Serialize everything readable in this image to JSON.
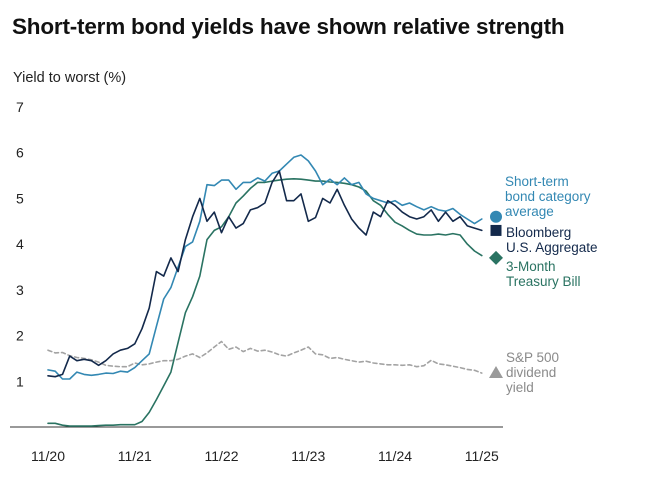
{
  "chart_data": {
    "type": "line",
    "title": "Short-term bond yields have shown relative strength",
    "ylabel": "Yield to worst (%)",
    "xlabel": "",
    "ylim": [
      0,
      7
    ],
    "yticks": [
      1,
      2,
      3,
      4,
      5,
      6,
      7
    ],
    "xlim": [
      0,
      61
    ],
    "xticks": [
      {
        "label": "11/20",
        "x": 0
      },
      {
        "label": "11/21",
        "x": 12
      },
      {
        "label": "11/22",
        "x": 24
      },
      {
        "label": "11/23",
        "x": 36
      },
      {
        "label": "11/24",
        "x": 48
      },
      {
        "label": "11/25",
        "x": 60
      }
    ],
    "grid": false,
    "series": [
      {
        "name": "S&P 500 dividend yield",
        "label_lines": [
          "S&P 500",
          "dividend",
          "yield"
        ],
        "color": "#a3a3a3",
        "style": "dashed",
        "marker": "triangle",
        "points": [
          [
            0,
            1.68
          ],
          [
            1,
            1.62
          ],
          [
            2,
            1.63
          ],
          [
            3,
            1.56
          ],
          [
            4,
            1.52
          ],
          [
            5,
            1.5
          ],
          [
            6,
            1.47
          ],
          [
            7,
            1.42
          ],
          [
            8,
            1.35
          ],
          [
            9,
            1.33
          ],
          [
            10,
            1.32
          ],
          [
            11,
            1.32
          ],
          [
            12,
            1.4
          ],
          [
            13,
            1.36
          ],
          [
            14,
            1.38
          ],
          [
            15,
            1.42
          ],
          [
            16,
            1.45
          ],
          [
            17,
            1.45
          ],
          [
            18,
            1.48
          ],
          [
            19,
            1.55
          ],
          [
            20,
            1.6
          ],
          [
            21,
            1.52
          ],
          [
            22,
            1.62
          ],
          [
            23,
            1.75
          ],
          [
            24,
            1.87
          ],
          [
            25,
            1.7
          ],
          [
            26,
            1.75
          ],
          [
            27,
            1.65
          ],
          [
            28,
            1.72
          ],
          [
            29,
            1.66
          ],
          [
            30,
            1.68
          ],
          [
            31,
            1.64
          ],
          [
            32,
            1.58
          ],
          [
            33,
            1.55
          ],
          [
            34,
            1.62
          ],
          [
            35,
            1.68
          ],
          [
            36,
            1.75
          ],
          [
            37,
            1.6
          ],
          [
            38,
            1.58
          ],
          [
            39,
            1.5
          ],
          [
            40,
            1.52
          ],
          [
            41,
            1.48
          ],
          [
            42,
            1.45
          ],
          [
            43,
            1.42
          ],
          [
            44,
            1.44
          ],
          [
            45,
            1.4
          ],
          [
            46,
            1.38
          ],
          [
            47,
            1.36
          ],
          [
            48,
            1.36
          ],
          [
            49,
            1.35
          ],
          [
            50,
            1.36
          ],
          [
            51,
            1.32
          ],
          [
            52,
            1.34
          ],
          [
            53,
            1.46
          ],
          [
            54,
            1.38
          ],
          [
            55,
            1.36
          ],
          [
            56,
            1.33
          ],
          [
            57,
            1.3
          ],
          [
            58,
            1.26
          ],
          [
            59,
            1.24
          ],
          [
            60,
            1.18
          ]
        ]
      },
      {
        "name": "3-Month Treasury Bill",
        "label_lines": [
          "3-Month",
          "Treasury Bill"
        ],
        "color": "#2a7362",
        "style": "solid",
        "marker": "diamond",
        "points": [
          [
            0,
            0.08
          ],
          [
            1,
            0.08
          ],
          [
            2,
            0.04
          ],
          [
            3,
            0.02
          ],
          [
            4,
            0.02
          ],
          [
            5,
            0.02
          ],
          [
            6,
            0.02
          ],
          [
            7,
            0.03
          ],
          [
            8,
            0.04
          ],
          [
            9,
            0.04
          ],
          [
            10,
            0.05
          ],
          [
            11,
            0.05
          ],
          [
            12,
            0.05
          ],
          [
            13,
            0.12
          ],
          [
            14,
            0.32
          ],
          [
            15,
            0.6
          ],
          [
            16,
            0.9
          ],
          [
            17,
            1.2
          ],
          [
            18,
            1.85
          ],
          [
            19,
            2.5
          ],
          [
            20,
            2.85
          ],
          [
            21,
            3.3
          ],
          [
            22,
            4.1
          ],
          [
            23,
            4.3
          ],
          [
            24,
            4.38
          ],
          [
            25,
            4.6
          ],
          [
            26,
            4.9
          ],
          [
            27,
            5.05
          ],
          [
            28,
            5.22
          ],
          [
            29,
            5.35
          ],
          [
            30,
            5.35
          ],
          [
            31,
            5.38
          ],
          [
            32,
            5.4
          ],
          [
            33,
            5.42
          ],
          [
            34,
            5.43
          ],
          [
            35,
            5.42
          ],
          [
            36,
            5.4
          ],
          [
            37,
            5.38
          ],
          [
            38,
            5.38
          ],
          [
            39,
            5.36
          ],
          [
            40,
            5.35
          ],
          [
            41,
            5.33
          ],
          [
            42,
            5.3
          ],
          [
            43,
            5.25
          ],
          [
            44,
            5.16
          ],
          [
            45,
            4.95
          ],
          [
            46,
            4.85
          ],
          [
            47,
            4.65
          ],
          [
            48,
            4.48
          ],
          [
            49,
            4.4
          ],
          [
            50,
            4.3
          ],
          [
            51,
            4.22
          ],
          [
            52,
            4.2
          ],
          [
            53,
            4.2
          ],
          [
            54,
            4.22
          ],
          [
            55,
            4.2
          ],
          [
            56,
            4.23
          ],
          [
            57,
            4.2
          ],
          [
            58,
            4.0
          ],
          [
            59,
            3.85
          ],
          [
            60,
            3.75
          ]
        ]
      },
      {
        "name": "Short-term bond category average",
        "label_lines": [
          "Short-term",
          "bond category",
          "average"
        ],
        "color": "#3388b3",
        "style": "solid",
        "marker": "circle",
        "points": [
          [
            0,
            1.25
          ],
          [
            1,
            1.22
          ],
          [
            2,
            1.05
          ],
          [
            3,
            1.05
          ],
          [
            4,
            1.2
          ],
          [
            5,
            1.15
          ],
          [
            6,
            1.13
          ],
          [
            7,
            1.15
          ],
          [
            8,
            1.18
          ],
          [
            9,
            1.17
          ],
          [
            10,
            1.22
          ],
          [
            11,
            1.2
          ],
          [
            12,
            1.3
          ],
          [
            13,
            1.45
          ],
          [
            14,
            1.6
          ],
          [
            15,
            2.2
          ],
          [
            16,
            2.8
          ],
          [
            17,
            3.05
          ],
          [
            18,
            3.5
          ],
          [
            19,
            3.95
          ],
          [
            20,
            4.05
          ],
          [
            21,
            4.5
          ],
          [
            22,
            5.3
          ],
          [
            23,
            5.28
          ],
          [
            24,
            5.4
          ],
          [
            25,
            5.4
          ],
          [
            26,
            5.2
          ],
          [
            27,
            5.35
          ],
          [
            28,
            5.35
          ],
          [
            29,
            5.45
          ],
          [
            30,
            5.38
          ],
          [
            31,
            5.55
          ],
          [
            32,
            5.6
          ],
          [
            33,
            5.75
          ],
          [
            34,
            5.9
          ],
          [
            35,
            5.95
          ],
          [
            36,
            5.82
          ],
          [
            37,
            5.6
          ],
          [
            38,
            5.3
          ],
          [
            39,
            5.42
          ],
          [
            40,
            5.3
          ],
          [
            41,
            5.45
          ],
          [
            42,
            5.3
          ],
          [
            43,
            5.35
          ],
          [
            44,
            5.1
          ],
          [
            45,
            5.0
          ],
          [
            46,
            4.95
          ],
          [
            47,
            4.9
          ],
          [
            48,
            4.95
          ],
          [
            49,
            4.85
          ],
          [
            50,
            4.9
          ],
          [
            51,
            4.82
          ],
          [
            52,
            4.75
          ],
          [
            53,
            4.82
          ],
          [
            54,
            4.75
          ],
          [
            55,
            4.72
          ],
          [
            56,
            4.78
          ],
          [
            57,
            4.65
          ],
          [
            58,
            4.55
          ],
          [
            59,
            4.45
          ],
          [
            60,
            4.55
          ]
        ]
      },
      {
        "name": "Bloomberg U.S. Aggregate",
        "label_lines": [
          "Bloomberg",
          "U.S. Aggregate"
        ],
        "color": "#13294b",
        "style": "solid",
        "marker": "square",
        "points": [
          [
            0,
            1.12
          ],
          [
            1,
            1.1
          ],
          [
            2,
            1.15
          ],
          [
            3,
            1.55
          ],
          [
            4,
            1.45
          ],
          [
            5,
            1.48
          ],
          [
            6,
            1.45
          ],
          [
            7,
            1.35
          ],
          [
            8,
            1.45
          ],
          [
            9,
            1.6
          ],
          [
            10,
            1.68
          ],
          [
            11,
            1.72
          ],
          [
            12,
            1.82
          ],
          [
            13,
            2.15
          ],
          [
            14,
            2.6
          ],
          [
            15,
            3.4
          ],
          [
            16,
            3.3
          ],
          [
            17,
            3.7
          ],
          [
            18,
            3.4
          ],
          [
            19,
            4.1
          ],
          [
            20,
            4.6
          ],
          [
            21,
            5.0
          ],
          [
            22,
            4.5
          ],
          [
            23,
            4.7
          ],
          [
            24,
            4.25
          ],
          [
            25,
            4.6
          ],
          [
            26,
            4.35
          ],
          [
            27,
            4.45
          ],
          [
            28,
            4.75
          ],
          [
            29,
            4.8
          ],
          [
            30,
            4.9
          ],
          [
            31,
            5.35
          ],
          [
            32,
            5.6
          ],
          [
            33,
            4.95
          ],
          [
            34,
            4.95
          ],
          [
            35,
            5.1
          ],
          [
            36,
            4.5
          ],
          [
            37,
            4.58
          ],
          [
            38,
            5.0
          ],
          [
            39,
            4.9
          ],
          [
            40,
            5.2
          ],
          [
            41,
            4.85
          ],
          [
            42,
            4.55
          ],
          [
            43,
            4.35
          ],
          [
            44,
            4.2
          ],
          [
            45,
            4.7
          ],
          [
            46,
            4.6
          ],
          [
            47,
            4.95
          ],
          [
            48,
            4.85
          ],
          [
            49,
            4.7
          ],
          [
            50,
            4.6
          ],
          [
            51,
            4.55
          ],
          [
            52,
            4.6
          ],
          [
            53,
            4.75
          ],
          [
            54,
            4.5
          ],
          [
            55,
            4.7
          ],
          [
            56,
            4.5
          ],
          [
            57,
            4.6
          ],
          [
            58,
            4.4
          ],
          [
            59,
            4.35
          ],
          [
            60,
            4.3
          ]
        ]
      }
    ]
  }
}
